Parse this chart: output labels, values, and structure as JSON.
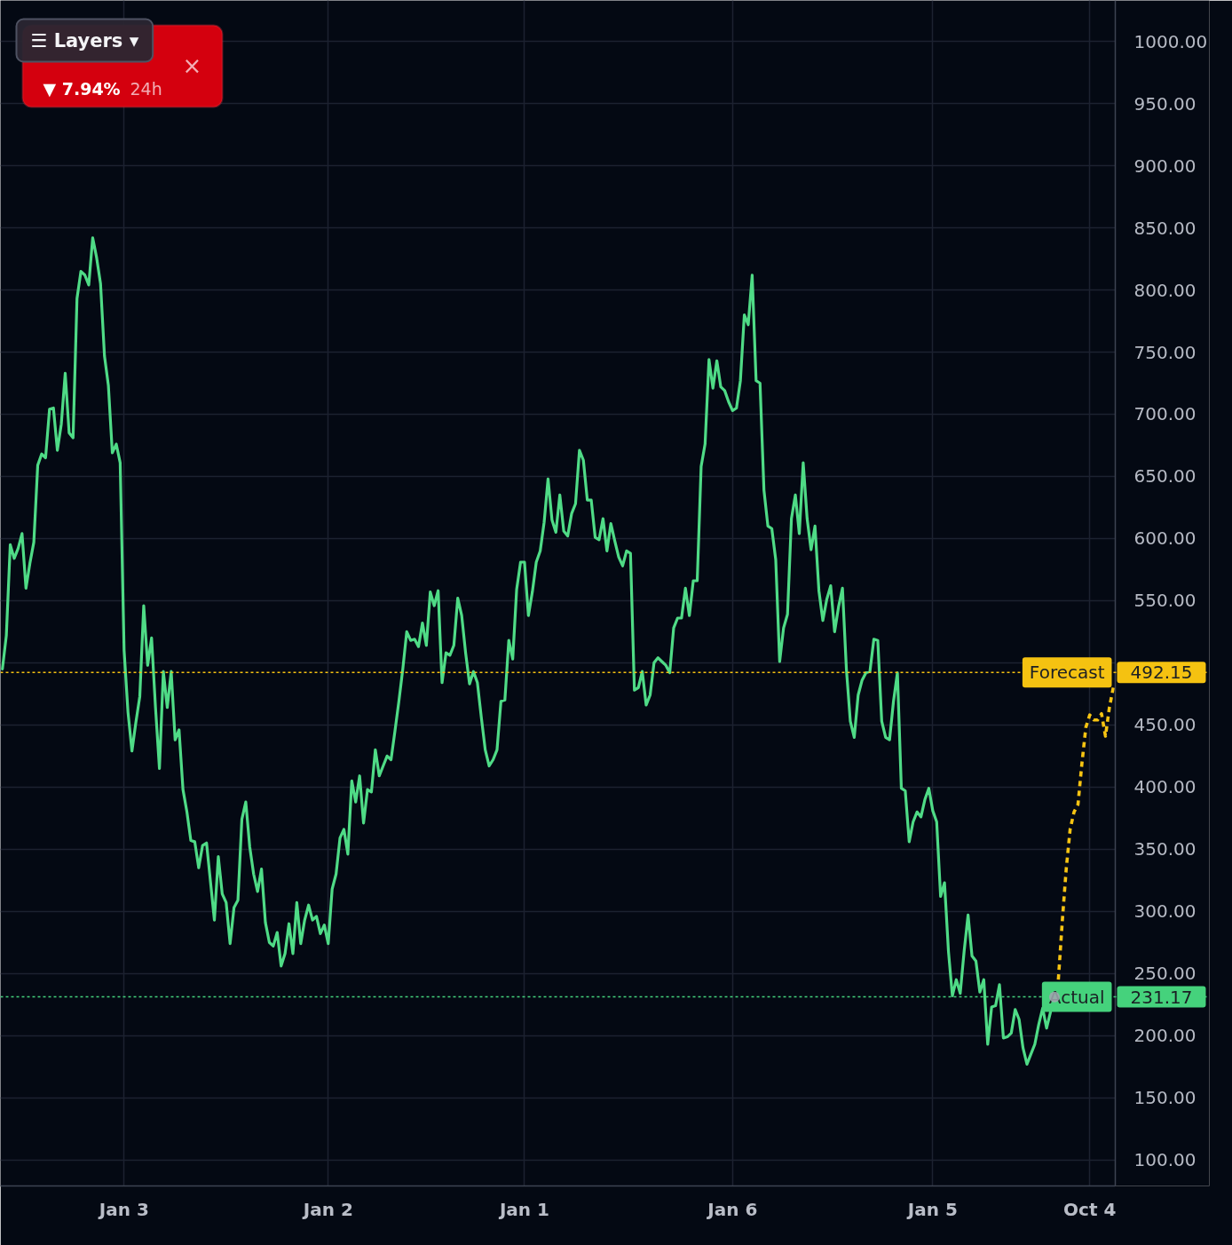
{
  "chart_data": {
    "type": "line",
    "categories": [
      null,
      null,
      null,
      null,
      null,
      null,
      null,
      null,
      null,
      null,
      null,
      null,
      null,
      null,
      null,
      null,
      null,
      null,
      null,
      null,
      null,
      null,
      null,
      null,
      null,
      null,
      null,
      null,
      null,
      null,
      null,
      "Jan 3",
      null,
      null,
      null,
      null,
      null,
      null,
      null,
      null,
      null,
      null,
      null,
      null,
      null,
      null,
      null,
      null,
      null,
      null,
      null,
      null,
      null,
      null,
      null,
      null,
      null,
      null,
      null,
      null,
      null,
      null,
      null,
      null,
      null,
      null,
      null,
      null,
      null,
      null,
      null,
      null,
      null,
      null,
      null,
      null,
      null,
      null,
      null,
      null,
      null,
      null,
      null,
      "Jan 2",
      null,
      null,
      null,
      null,
      null,
      null,
      null,
      null,
      null,
      null,
      null,
      null,
      null,
      null,
      null,
      null,
      null,
      null,
      null,
      null,
      null,
      null,
      null,
      null,
      null,
      null,
      null,
      null,
      null,
      null,
      null,
      null,
      null,
      null,
      null,
      null,
      null,
      null,
      null,
      null,
      null,
      null,
      null,
      null,
      null,
      null,
      null,
      null,
      null,
      "Jan 1",
      null,
      null,
      null,
      null,
      null,
      null,
      null,
      null,
      null,
      null,
      null,
      null,
      null,
      null,
      null,
      null,
      null,
      null,
      null,
      null,
      null,
      null,
      null,
      null,
      null,
      null,
      null,
      null,
      null,
      null,
      null,
      null,
      null,
      null,
      null,
      null,
      null,
      null,
      null,
      null,
      null,
      null,
      null,
      null,
      null,
      null,
      null,
      null,
      null,
      null,
      null,
      null,
      "Jan 6",
      null,
      null,
      null,
      null,
      null,
      null,
      null,
      null,
      null,
      null,
      null,
      null,
      null,
      null,
      null,
      null,
      null,
      null,
      null,
      null,
      null,
      null,
      null,
      null,
      null,
      null,
      null,
      null,
      null,
      null,
      null,
      null,
      null,
      null,
      null,
      null,
      null,
      null,
      null,
      null,
      null,
      null,
      null,
      null,
      null,
      null,
      null,
      null,
      null,
      null,
      "Jan 5",
      null,
      null,
      null,
      null,
      null,
      null,
      null,
      null,
      null,
      null,
      null,
      null,
      null,
      null,
      null,
      null,
      null,
      null,
      null,
      null,
      null,
      null,
      null,
      null,
      null,
      null,
      null,
      null,
      null,
      null,
      null,
      null,
      null,
      null,
      null,
      null,
      null,
      null,
      null,
      "Oct 4",
      null,
      null,
      null,
      null,
      null,
      null
    ],
    "ylim": [
      79,
      1033
    ],
    "yticks": [
      {
        "value": 100,
        "label": "100.00"
      },
      {
        "value": 150,
        "label": "150.00"
      },
      {
        "value": 200,
        "label": "200.00"
      },
      {
        "value": 250,
        "label": "250.00"
      },
      {
        "value": 300,
        "label": "300.00"
      },
      {
        "value": 350,
        "label": "350.00"
      },
      {
        "value": 400,
        "label": "400.00"
      },
      {
        "value": 450,
        "label": "450.00"
      },
      {
        "value": 500,
        "label": null
      },
      {
        "value": 550,
        "label": "550.00"
      },
      {
        "value": 600,
        "label": "600.00"
      },
      {
        "value": 650,
        "label": "650.00"
      },
      {
        "value": 700,
        "label": "700.00"
      },
      {
        "value": 750,
        "label": "750.00"
      },
      {
        "value": 800,
        "label": "800.00"
      },
      {
        "value": 850,
        "label": "850.00"
      },
      {
        "value": 900,
        "label": "900.00"
      },
      {
        "value": 950,
        "label": "950.00"
      },
      {
        "value": 1000,
        "label": "1000.00"
      }
    ],
    "grid": true,
    "line_style": "solid",
    "series": [
      {
        "color": "#4fdb86",
        "values": [
          495,
          522,
          595,
          584,
          592,
          604,
          560,
          580,
          597,
          659,
          668,
          665,
          704,
          705,
          671,
          692,
          733,
          685,
          681,
          793,
          815,
          812,
          804,
          842,
          826,
          805,
          747,
          723,
          669,
          676,
          661,
          510,
          460,
          429,
          452,
          473,
          546,
          498,
          520,
          464,
          415,
          493,
          464,
          493,
          438,
          446,
          398,
          380,
          357,
          356,
          335,
          353,
          355,
          324,
          293,
          344,
          314,
          307,
          274,
          303,
          309,
          374,
          388,
          352,
          330,
          316,
          334,
          291,
          275,
          272,
          283,
          256,
          266,
          290,
          266,
          307,
          274,
          293,
          305,
          293,
          296,
          282,
          289,
          274,
          318,
          330,
          359,
          366,
          346,
          405,
          388,
          409,
          371,
          398,
          396,
          430,
          409,
          417,
          425,
          422,
          445,
          469,
          495,
          525,
          518,
          519,
          513,
          532,
          514,
          557,
          546,
          558,
          484,
          508,
          506,
          514,
          552,
          538,
          508,
          483,
          493,
          484,
          456,
          430,
          417,
          422,
          430,
          469,
          470,
          518,
          503,
          559,
          581,
          581,
          538,
          557,
          581,
          590,
          613,
          648,
          615,
          605,
          635,
          606,
          602,
          620,
          628,
          671,
          663,
          631,
          631,
          601,
          599,
          616,
          590,
          612,
          598,
          585,
          578,
          590,
          588,
          478,
          480,
          493,
          466,
          474,
          500,
          504,
          501,
          498,
          492,
          528,
          536,
          536,
          560,
          538,
          566,
          566,
          658,
          676,
          744,
          721,
          743,
          722,
          719,
          710,
          703,
          705,
          727,
          780,
          772,
          812,
          727,
          725,
          639,
          610,
          608,
          583,
          501,
          528,
          539,
          616,
          635,
          604,
          661,
          616,
          591,
          610,
          558,
          534,
          551,
          562,
          525,
          545,
          560,
          495,
          453,
          440,
          474,
          486,
          492,
          493,
          519,
          518,
          453,
          440,
          438,
          469,
          492,
          399,
          397,
          356,
          372,
          380,
          376,
          390,
          399,
          381,
          372,
          312,
          323,
          268,
          232,
          245,
          234,
          268,
          297,
          264,
          260,
          235,
          245,
          193,
          223,
          224,
          241,
          198,
          199,
          202,
          221,
          213,
          190,
          177,
          185,
          193,
          209,
          222,
          206,
          219,
          null,
          null,
          null,
          null,
          null,
          null,
          null,
          null,
          null,
          null,
          null,
          null,
          null,
          null,
          null,
          null
        ]
      },
      {
        "color": "#f7c412",
        "line_style": "dotted",
        "values": [
          null,
          null,
          null,
          null,
          null,
          null,
          null,
          null,
          null,
          null,
          null,
          null,
          null,
          null,
          null,
          null,
          null,
          null,
          null,
          null,
          null,
          null,
          null,
          null,
          null,
          null,
          null,
          null,
          null,
          null,
          null,
          null,
          null,
          null,
          null,
          null,
          null,
          null,
          null,
          null,
          null,
          null,
          null,
          null,
          null,
          null,
          null,
          null,
          null,
          null,
          null,
          null,
          null,
          null,
          null,
          null,
          null,
          null,
          null,
          null,
          null,
          null,
          null,
          null,
          null,
          null,
          null,
          null,
          null,
          null,
          null,
          null,
          null,
          null,
          null,
          null,
          null,
          null,
          null,
          null,
          null,
          null,
          null,
          null,
          null,
          null,
          null,
          null,
          null,
          null,
          null,
          null,
          null,
          null,
          null,
          null,
          null,
          null,
          null,
          null,
          null,
          null,
          null,
          null,
          null,
          null,
          null,
          null,
          null,
          null,
          null,
          null,
          null,
          null,
          null,
          null,
          null,
          null,
          null,
          null,
          null,
          null,
          null,
          null,
          null,
          null,
          null,
          null,
          null,
          null,
          null,
          null,
          null,
          null,
          null,
          null,
          null,
          null,
          null,
          null,
          null,
          null,
          null,
          null,
          null,
          null,
          null,
          null,
          null,
          null,
          null,
          null,
          null,
          null,
          null,
          null,
          null,
          null,
          null,
          null,
          null,
          null,
          null,
          null,
          null,
          null,
          null,
          null,
          null,
          null,
          null,
          null,
          null,
          null,
          null,
          null,
          null,
          null,
          null,
          null,
          null,
          null,
          null,
          null,
          null,
          null,
          null,
          null,
          null,
          null,
          null,
          null,
          null,
          null,
          null,
          null,
          null,
          null,
          null,
          null,
          null,
          null,
          null,
          null,
          null,
          null,
          null,
          null,
          null,
          null,
          null,
          null,
          null,
          null,
          null,
          null,
          null,
          null,
          null,
          null,
          null,
          null,
          null,
          null,
          null,
          null,
          null,
          null,
          null,
          null,
          null,
          null,
          null,
          null,
          null,
          null,
          null,
          null,
          null,
          null,
          null,
          null,
          null,
          null,
          null,
          null,
          null,
          null,
          null,
          null,
          null,
          null,
          null,
          null,
          null,
          null,
          null,
          null,
          null,
          null,
          null,
          null,
          null,
          null,
          null,
          null,
          null,
          null,
          null,
          245,
          292,
          334,
          366,
          380,
          386,
          419,
          448,
          458,
          454,
          454,
          459,
          441,
          464,
          480
        ]
      },
      {
        "type": "scatter",
        "color": "#a3a7b1",
        "marker": "circle",
        "values": [
          null,
          null,
          null,
          null,
          null,
          null,
          null,
          null,
          null,
          null,
          null,
          null,
          null,
          null,
          null,
          null,
          null,
          null,
          null,
          null,
          null,
          null,
          null,
          null,
          null,
          null,
          null,
          null,
          null,
          null,
          null,
          null,
          null,
          null,
          null,
          null,
          null,
          null,
          null,
          null,
          null,
          null,
          null,
          null,
          null,
          null,
          null,
          null,
          null,
          null,
          null,
          null,
          null,
          null,
          null,
          null,
          null,
          null,
          null,
          null,
          null,
          null,
          null,
          null,
          null,
          null,
          null,
          null,
          null,
          null,
          null,
          null,
          null,
          null,
          null,
          null,
          null,
          null,
          null,
          null,
          null,
          null,
          null,
          null,
          null,
          null,
          null,
          null,
          null,
          null,
          null,
          null,
          null,
          null,
          null,
          null,
          null,
          null,
          null,
          null,
          null,
          null,
          null,
          null,
          null,
          null,
          null,
          null,
          null,
          null,
          null,
          null,
          null,
          null,
          null,
          null,
          null,
          null,
          null,
          null,
          null,
          null,
          null,
          null,
          null,
          null,
          null,
          null,
          null,
          null,
          null,
          null,
          null,
          null,
          null,
          null,
          null,
          null,
          null,
          null,
          null,
          null,
          null,
          null,
          null,
          null,
          null,
          null,
          null,
          null,
          null,
          null,
          null,
          null,
          null,
          null,
          null,
          null,
          null,
          null,
          null,
          null,
          null,
          null,
          null,
          null,
          null,
          null,
          null,
          null,
          null,
          null,
          null,
          null,
          null,
          null,
          null,
          null,
          null,
          null,
          null,
          null,
          null,
          null,
          null,
          null,
          null,
          null,
          null,
          null,
          null,
          null,
          null,
          null,
          null,
          null,
          null,
          null,
          null,
          null,
          null,
          null,
          null,
          null,
          null,
          null,
          null,
          null,
          null,
          null,
          null,
          null,
          null,
          null,
          null,
          null,
          null,
          null,
          null,
          null,
          null,
          null,
          null,
          null,
          null,
          null,
          null,
          null,
          null,
          null,
          null,
          null,
          null,
          null,
          null,
          null,
          null,
          null,
          null,
          null,
          null,
          null,
          null,
          null,
          null,
          null,
          null,
          null,
          null,
          null,
          null,
          null,
          null,
          null,
          null,
          null,
          null,
          null,
          null,
          null,
          null,
          null,
          null,
          null,
          null,
          null,
          null,
          null,
          231,
          null,
          null,
          null,
          null,
          null,
          null,
          null,
          null,
          null,
          null,
          null,
          null,
          null,
          null,
          null
        ]
      }
    ],
    "ref_lines": [
      {
        "axis": "y",
        "value": 492.15,
        "label": "Forecast",
        "color": "#f5c211",
        "line_style": "dotted"
      },
      {
        "axis": "y",
        "value": 231.17,
        "label": "Actual",
        "color": "#45d27c",
        "line_style": "dotted"
      }
    ],
    "annotations": [
      "☰ Layers ▾",
      "▼ 7.94%",
      "24h",
      "×",
      {
        "text": "492.15",
        "y": 492.15
      },
      {
        "text": "231.17",
        "y": 231.17
      }
    ]
  }
}
